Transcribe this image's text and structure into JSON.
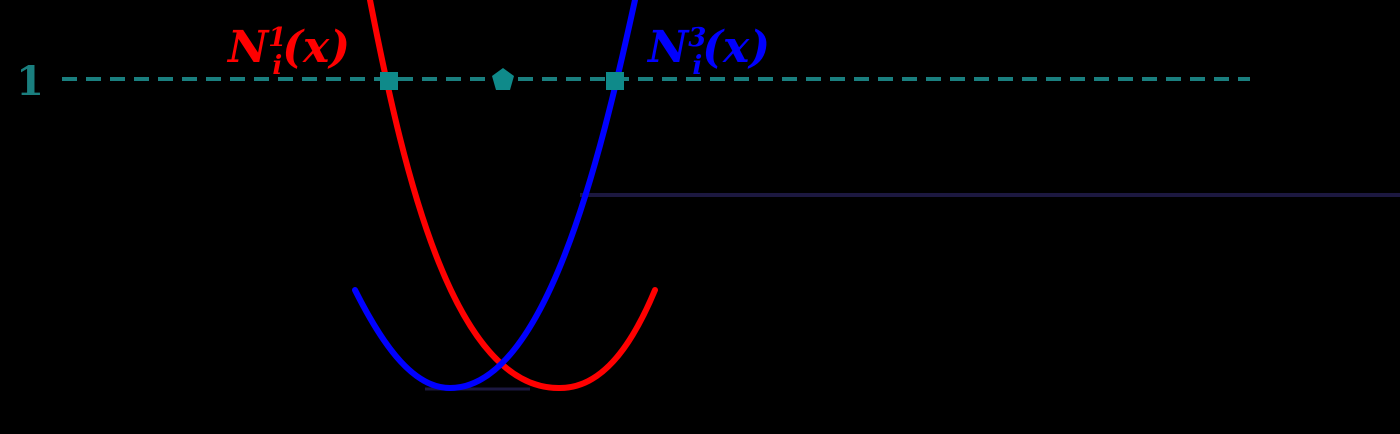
{
  "colors": {
    "background": "#000000",
    "curve_red": "#ff0000",
    "curve_blue": "#0000ff",
    "dashed_line": "#1a7f7f",
    "marker": "#0f8a8a",
    "axis_line": "#1c1840"
  },
  "labels": {
    "red_curve": {
      "base": "N",
      "sup": "1",
      "sub": "i",
      "arg": "(x)"
    },
    "blue_curve": {
      "base": "N",
      "sup": "3",
      "sub": "i",
      "arg": "(x)"
    },
    "level_tick": "1"
  },
  "icons": {
    "marker_left": "square-marker",
    "marker_center": "pentagon-marker",
    "marker_right": "square-marker"
  }
}
